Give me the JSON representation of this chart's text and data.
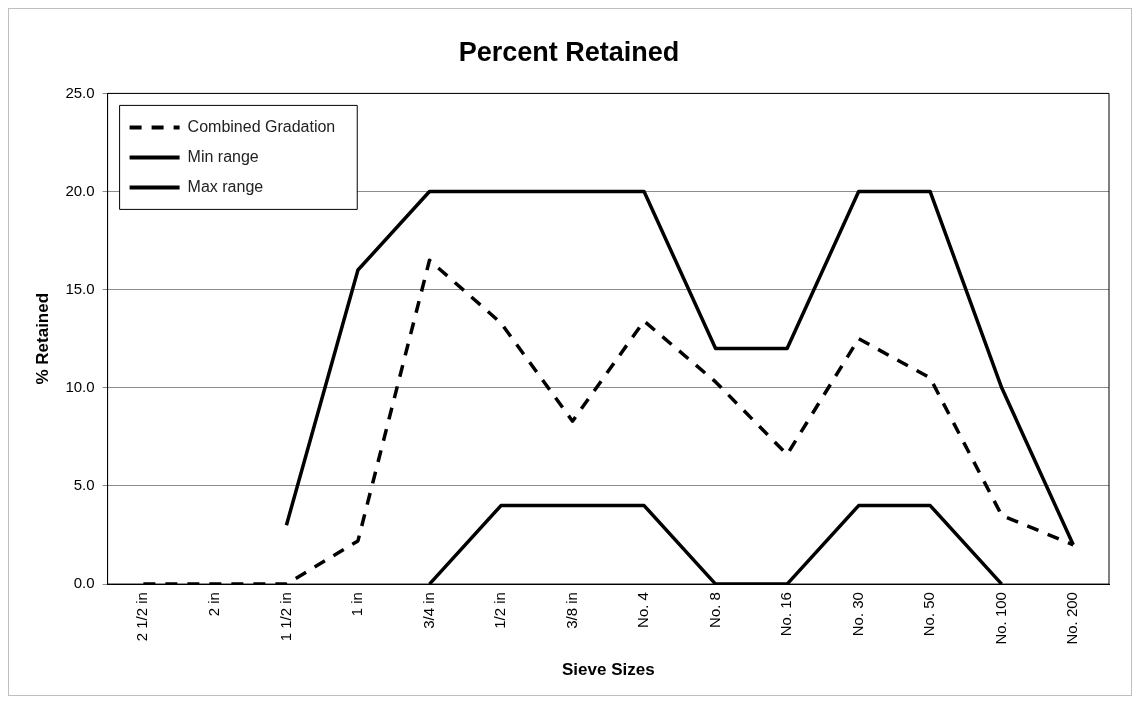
{
  "chart_data": {
    "type": "line",
    "title": "Percent Retained",
    "xlabel": "Sieve Sizes",
    "ylabel": "% Retained",
    "categories": [
      "2 1/2 in",
      "2 in",
      "1 1/2 in",
      "1 in",
      "3/4 in",
      "1/2 in",
      "3/8 in",
      "No. 4",
      "No. 8",
      "No. 16",
      "No. 30",
      "No. 50",
      "No. 100",
      "No. 200"
    ],
    "series": [
      {
        "name": "Combined Gradation",
        "color": "#000000",
        "line_style": "dashed",
        "values": [
          0,
          0,
          0,
          2.2,
          16.5,
          13.3,
          8.3,
          13.4,
          10.3,
          6.6,
          12.5,
          10.5,
          3.5,
          2.0
        ]
      },
      {
        "name": "Min range",
        "color": "#000000",
        "line_style": "solid",
        "values": [
          null,
          null,
          null,
          null,
          0,
          4,
          4,
          4,
          0,
          0,
          4,
          4,
          0,
          null
        ]
      },
      {
        "name": "Max range",
        "color": "#000000",
        "line_style": "solid",
        "values": [
          null,
          null,
          3,
          16,
          20,
          20,
          20,
          20,
          12,
          12,
          20,
          20,
          10,
          2
        ]
      }
    ],
    "ylim": [
      0,
      25
    ],
    "yticks": [
      {
        "value": 0,
        "label": "0.0"
      },
      {
        "value": 5,
        "label": "5.0"
      },
      {
        "value": 10,
        "label": "10.0"
      },
      {
        "value": 15,
        "label": "15.0"
      },
      {
        "value": 20,
        "label": "20.0"
      },
      {
        "value": 25,
        "label": "25.0"
      }
    ],
    "grid": "y",
    "legend": "top left",
    "marker": "none"
  }
}
